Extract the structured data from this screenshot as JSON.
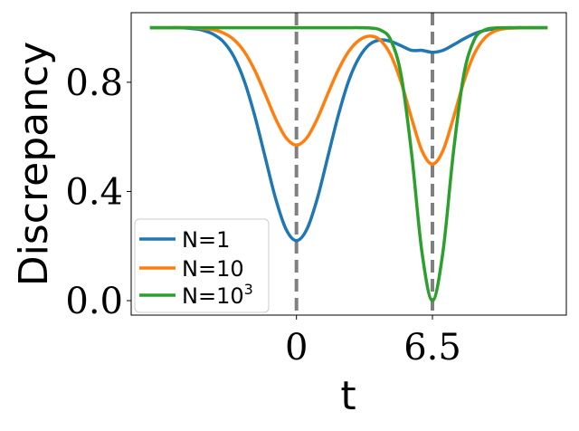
{
  "chart_data": {
    "type": "line",
    "title": "",
    "xlabel": "t",
    "ylabel": "Discrepancy",
    "xlim": [
      -7.9,
      12.9
    ],
    "ylim": [
      -0.053,
      1.055
    ],
    "xticks": [
      {
        "value": 0,
        "label": "0"
      },
      {
        "value": 6.5,
        "label": "6.5"
      }
    ],
    "yticks": [
      {
        "value": 0.0,
        "label": "0.0"
      },
      {
        "value": 0.4,
        "label": "0.4"
      },
      {
        "value": 0.8,
        "label": "0.8"
      }
    ],
    "grid": false,
    "legend_placement": "lower-left",
    "vlines": {
      "x": [
        0,
        6.5
      ],
      "color": "#808080",
      "style": "dashed"
    },
    "x": [
      -7,
      -6.5,
      -6,
      -5.5,
      -5,
      -4.5,
      -4,
      -3.5,
      -3,
      -2.5,
      -2,
      -1.5,
      -1,
      -0.5,
      0,
      0.5,
      1,
      1.5,
      2,
      2.5,
      3,
      3.5,
      4,
      4.5,
      5,
      5.5,
      6,
      6.5,
      7,
      7.5,
      8,
      8.5,
      9,
      9.5,
      10,
      10.5,
      11,
      11.5,
      12
    ],
    "series": [
      {
        "name": "N=1",
        "name_base": "N=1",
        "name_sup": "",
        "color": "#1f77b4",
        "values": [
          1,
          1,
          1,
          1,
          0.997,
          0.991,
          0.977,
          0.949,
          0.895,
          0.806,
          0.679,
          0.527,
          0.375,
          0.262,
          0.22,
          0.262,
          0.375,
          0.527,
          0.679,
          0.806,
          0.891,
          0.939,
          0.955,
          0.95,
          0.934,
          0.917,
          0.917,
          0.91,
          0.917,
          0.937,
          0.959,
          0.978,
          0.99,
          0.996,
          0.999,
          1,
          1,
          1,
          1
        ]
      },
      {
        "name": "N=10",
        "name_base": "N=10",
        "name_sup": "",
        "color": "#ff7f0e",
        "values": [
          1,
          1,
          1,
          1,
          1,
          0.997,
          0.993,
          0.981,
          0.957,
          0.913,
          0.845,
          0.758,
          0.667,
          0.597,
          0.57,
          0.597,
          0.667,
          0.758,
          0.845,
          0.913,
          0.954,
          0.969,
          0.955,
          0.901,
          0.801,
          0.669,
          0.549,
          0.5,
          0.549,
          0.669,
          0.802,
          0.904,
          0.962,
          0.988,
          0.997,
          0.999,
          1,
          1,
          1
        ]
      },
      {
        "name": "N=10^3",
        "name_base": "N=10",
        "name_sup": "3",
        "color": "#2ca02c",
        "values": [
          1,
          1,
          1,
          1,
          1,
          1,
          1,
          1,
          1,
          1,
          1,
          1,
          1,
          1,
          1,
          1,
          1,
          1,
          1,
          1,
          1,
          0.999,
          0.992,
          0.956,
          0.828,
          0.542,
          0.177,
          0,
          0.177,
          0.542,
          0.828,
          0.956,
          0.992,
          0.999,
          1,
          1,
          1,
          1,
          1
        ]
      }
    ]
  }
}
